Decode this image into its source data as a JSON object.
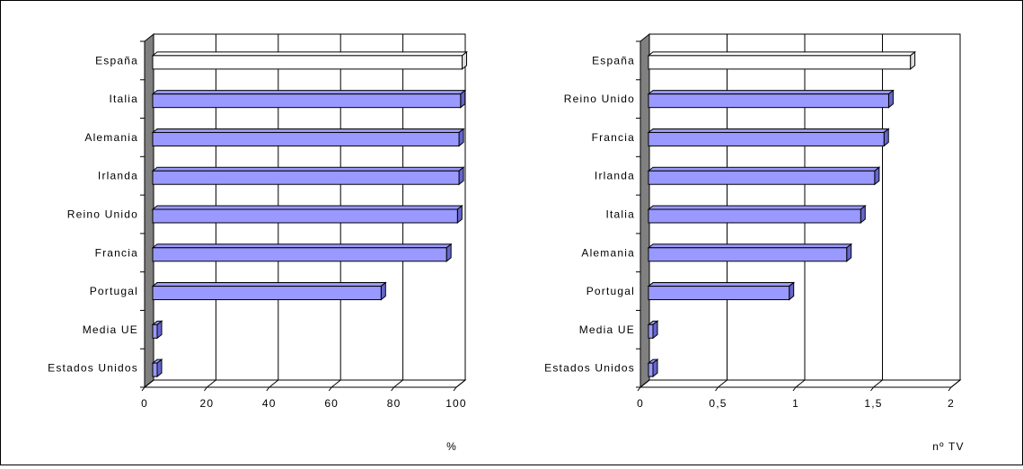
{
  "colors": {
    "highlight": "#ffffff",
    "bar": "#9999ff",
    "bar_side": "#6666cc",
    "wall": "#808080",
    "grid": "#000000"
  },
  "chart_data": [
    {
      "type": "bar",
      "orientation": "horizontal",
      "style": "3d",
      "categories": [
        "España",
        "Italia",
        "Alemania",
        "Irlanda",
        "Reino Unido",
        "Francia",
        "Portugal",
        "Media UE",
        "Estados Unidos"
      ],
      "values": [
        99,
        98.5,
        98,
        98,
        97.5,
        94,
        73,
        0,
        0
      ],
      "highlight_index": 0,
      "xlim": [
        0,
        100
      ],
      "xticks": [
        "0",
        "20",
        "40",
        "60",
        "80",
        "100"
      ],
      "xtick_values": [
        0,
        20,
        40,
        60,
        80,
        100
      ],
      "xlabel": "%",
      "grid": true
    },
    {
      "type": "bar",
      "orientation": "horizontal",
      "style": "3d",
      "categories": [
        "España",
        "Reino Unido",
        "Francia",
        "Irlanda",
        "Italia",
        "Alemania",
        "Portugal",
        "Media UE",
        "Estados Unidos"
      ],
      "values": [
        1.68,
        1.54,
        1.51,
        1.45,
        1.36,
        1.27,
        0.9,
        0,
        0
      ],
      "highlight_index": 0,
      "xlim": [
        0,
        2
      ],
      "xticks": [
        "0",
        "0,5",
        "1",
        "1,5",
        "2"
      ],
      "xtick_values": [
        0,
        0.5,
        1,
        1.5,
        2
      ],
      "xlabel": "nº TV",
      "grid": true
    }
  ]
}
